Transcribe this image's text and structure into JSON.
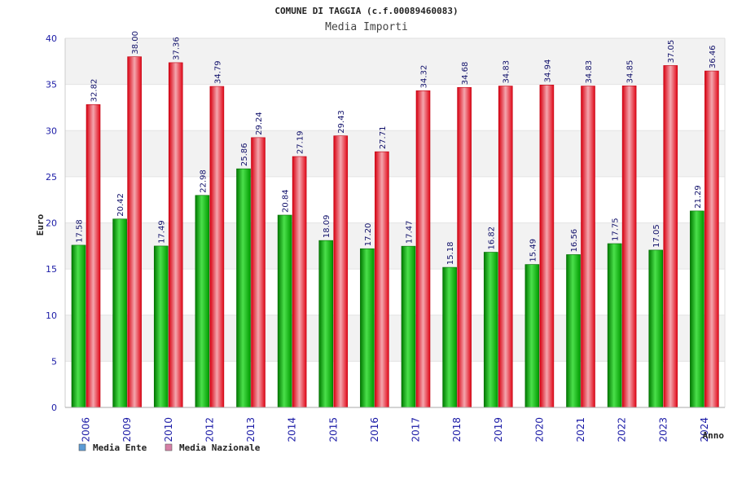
{
  "chart_data": {
    "type": "bar",
    "title": "COMUNE DI TAGGIA (c.f.00089460083)",
    "subtitle": "Media Importi",
    "xlabel": "Anno",
    "ylabel": "Euro",
    "ylim": [
      0,
      40
    ],
    "yticks": [
      0,
      5,
      10,
      15,
      20,
      25,
      30,
      35,
      40
    ],
    "grid": true,
    "legend_position": "bottom-left",
    "categories": [
      "2006",
      "2009",
      "2010",
      "2012",
      "2013",
      "2014",
      "2015",
      "2016",
      "2017",
      "2018",
      "2019",
      "2020",
      "2021",
      "2022",
      "2023",
      "2024"
    ],
    "series": [
      {
        "name": "Media Ente",
        "color": "#00b000",
        "legend_color": "#5b9bd5",
        "values": [
          17.58,
          20.42,
          17.49,
          22.98,
          25.86,
          20.84,
          18.09,
          17.2,
          17.47,
          15.18,
          16.82,
          15.49,
          16.56,
          17.75,
          17.05,
          21.29
        ],
        "labels": [
          "17.58",
          "20.42",
          "17.49",
          "22.98",
          "25.86",
          "20.84",
          "18.09",
          "17.20",
          "17.47",
          "15.18",
          "16.82",
          "15.49",
          "16.56",
          "17.75",
          "17.05",
          "21.29"
        ]
      },
      {
        "name": "Media Nazionale",
        "color": "#e01020",
        "legend_color": "#d67fa6",
        "values": [
          32.82,
          38.0,
          37.36,
          34.79,
          29.24,
          27.19,
          29.43,
          27.71,
          34.32,
          34.68,
          34.83,
          34.94,
          34.83,
          34.85,
          37.05,
          36.46
        ],
        "labels": [
          "32.82",
          "38.00",
          "37.36",
          "34.79",
          "29.24",
          "27.19",
          "29.43",
          "27.71",
          "34.32",
          "34.68",
          "34.83",
          "34.94",
          "34.83",
          "34.85",
          "37.05",
          "36.46"
        ]
      }
    ]
  }
}
